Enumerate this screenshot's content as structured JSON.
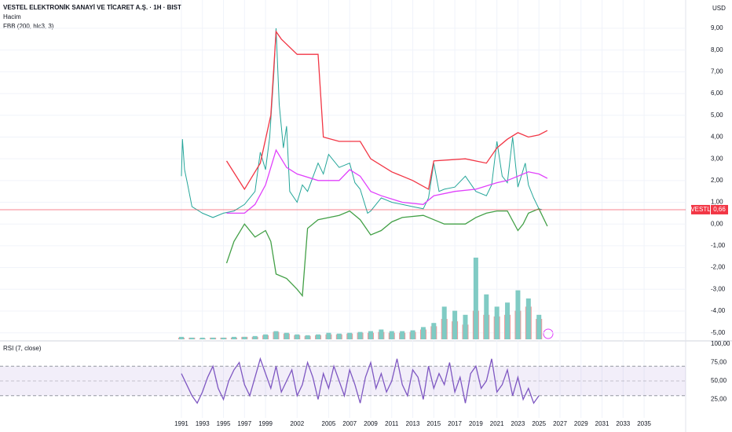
{
  "chart_data": [
    {
      "type": "line",
      "title": "VESTEL ELEKTRONİK SANAYİ VE TİCARET A.Ş. · 1H · BIST",
      "indicators": [
        "Hacim",
        "FBB (200, hlc3, 3)"
      ],
      "currency": "USD",
      "last_price": {
        "symbol": "VESTL",
        "value": 0.66,
        "label": "0,66",
        "color": "#f23645"
      },
      "xlim": [
        1973.75,
        2038.95
      ],
      "xticks": [
        1991,
        1993,
        1995,
        1997,
        1999,
        2002,
        2005,
        2007,
        2009,
        2011,
        2013,
        2015,
        2017,
        2019,
        2021,
        2023,
        2025,
        2027,
        2029,
        2031,
        2033,
        2035
      ],
      "ylim": [
        -5.3,
        10.3
      ],
      "yticks": [
        {
          "value": 9,
          "label": "9,00"
        },
        {
          "value": 8,
          "label": "8,00"
        },
        {
          "value": 7,
          "label": "7,00"
        },
        {
          "value": 6,
          "label": "6,00"
        },
        {
          "value": 5,
          "label": "5,00"
        },
        {
          "value": 4,
          "label": "4,00"
        },
        {
          "value": 3,
          "label": "3,00"
        },
        {
          "value": 2,
          "label": "2,00"
        },
        {
          "value": 1,
          "label": "1,00"
        },
        {
          "value": 0,
          "label": "0,00"
        },
        {
          "value": -1,
          "label": "-1,00"
        },
        {
          "value": -2,
          "label": "-2,00"
        },
        {
          "value": -3,
          "label": "-3,00"
        },
        {
          "value": -4,
          "label": "-4,00"
        },
        {
          "value": -5,
          "label": "-5,00"
        }
      ],
      "grid": true,
      "series": [
        {
          "color": "#26a69a",
          "x": [
            1991.0,
            1991.1,
            1991.3,
            1991.6,
            1992,
            1993,
            1994,
            1995,
            1996,
            1997,
            1998,
            1998.5,
            1999,
            1999.4,
            1999.8,
            2000.0,
            2000.3,
            2000.7,
            2001,
            2001.3,
            2002,
            2002.5,
            2003,
            2004,
            2004.5,
            2005,
            2006,
            2007,
            2007.5,
            2008,
            2008.7,
            2009,
            2010,
            2011,
            2012,
            2013,
            2014,
            2014.5,
            2015,
            2015.5,
            2016,
            2017,
            2018,
            2019,
            2020,
            2020.5,
            2021,
            2021.5,
            2022,
            2022.5,
            2023,
            2023.7,
            2024,
            2024.5,
            2025,
            2025.3
          ],
          "values": [
            2.2,
            3.9,
            2.5,
            1.8,
            0.8,
            0.5,
            0.3,
            0.5,
            0.6,
            0.9,
            1.5,
            3.3,
            2.5,
            4.0,
            7.0,
            9.0,
            5.5,
            3.5,
            4.5,
            1.5,
            1.0,
            1.8,
            1.5,
            2.8,
            2.3,
            3.2,
            2.6,
            2.8,
            1.9,
            1.6,
            0.5,
            0.6,
            1.2,
            1.0,
            0.9,
            0.8,
            0.7,
            1.2,
            2.8,
            1.5,
            1.6,
            1.7,
            2.2,
            1.5,
            1.3,
            1.8,
            3.8,
            2.2,
            1.9,
            4.0,
            1.7,
            2.8,
            1.8,
            1.2,
            0.7,
            0.66
          ]
        },
        {
          "color": "#f23645",
          "x": [
            1995.3,
            1997,
            1998.5,
            1999.5,
            2000,
            2000.5,
            2002,
            2004,
            2004.5,
            2006,
            2008,
            2009,
            2011,
            2013,
            2014.5,
            2015,
            2018,
            2020,
            2021,
            2022,
            2023,
            2024,
            2025,
            2025.8
          ],
          "values": [
            2.9,
            1.6,
            2.8,
            5.0,
            8.85,
            8.5,
            7.8,
            7.8,
            4.0,
            3.8,
            3.8,
            3.0,
            2.4,
            2.0,
            1.6,
            2.9,
            3.0,
            2.8,
            3.5,
            3.9,
            4.2,
            4.0,
            4.1,
            4.3
          ]
        },
        {
          "color": "#e040fb",
          "x": [
            1995.3,
            1997,
            1998,
            1999,
            2000,
            2001,
            2002,
            2004,
            2006,
            2007,
            2008,
            2009,
            2010,
            2012,
            2014,
            2015,
            2017,
            2019,
            2021,
            2022,
            2023,
            2024,
            2025,
            2025.8
          ],
          "values": [
            0.5,
            0.5,
            0.9,
            1.8,
            3.4,
            2.6,
            2.3,
            2.0,
            2.0,
            2.5,
            2.2,
            1.5,
            1.3,
            1.0,
            0.9,
            1.3,
            1.5,
            1.6,
            1.9,
            2.0,
            2.2,
            2.4,
            2.3,
            2.1
          ]
        },
        {
          "color": "#43a047",
          "x": [
            1995.3,
            1996,
            1997,
            1998,
            1999,
            1999.5,
            2000,
            2001,
            2002,
            2002.5,
            2003,
            2004,
            2006,
            2007,
            2008,
            2009,
            2010,
            2011,
            2012,
            2014,
            2015,
            2016,
            2018,
            2019,
            2020,
            2021,
            2022,
            2023,
            2023.5,
            2024,
            2025,
            2025.8
          ],
          "values": [
            -1.8,
            -0.8,
            0.0,
            -0.6,
            -0.3,
            -0.8,
            -2.3,
            -2.5,
            -3.0,
            -3.3,
            -0.2,
            0.2,
            0.4,
            0.6,
            0.2,
            -0.5,
            -0.3,
            0.1,
            0.3,
            0.4,
            0.2,
            0.0,
            0.0,
            0.3,
            0.5,
            0.6,
            0.6,
            -0.3,
            0.0,
            0.5,
            0.7,
            -0.1
          ]
        }
      ]
    },
    {
      "type": "bar",
      "ylim": [
        0,
        100
      ],
      "x": [
        1991,
        1992,
        1993,
        1994,
        1995,
        1996,
        1997,
        1998,
        1999,
        2000,
        2001,
        2002,
        2003,
        2004,
        2005,
        2006,
        2007,
        2008,
        2009,
        2010,
        2011,
        2012,
        2013,
        2014,
        2015,
        2016,
        2017,
        2018,
        2019,
        2020,
        2021,
        2022,
        2023,
        2024,
        2025
      ],
      "series": [
        {
          "color": "#ef9a9a",
          "values": [
            2,
            2,
            1,
            2,
            2,
            2,
            3,
            3,
            5,
            9,
            7,
            5,
            4,
            5,
            6,
            6,
            7,
            8,
            8,
            9,
            8,
            8,
            9,
            12,
            16,
            25,
            22,
            18,
            35,
            30,
            28,
            30,
            35,
            40,
            25
          ]
        },
        {
          "color": "#80cbc4",
          "values": [
            3,
            2,
            2,
            2,
            2,
            3,
            3,
            4,
            6,
            10,
            8,
            6,
            5,
            6,
            8,
            7,
            8,
            9,
            10,
            12,
            10,
            10,
            11,
            15,
            20,
            40,
            35,
            30,
            100,
            55,
            40,
            45,
            60,
            50,
            30
          ]
        }
      ]
    },
    {
      "type": "line",
      "title": "RSI (7, close)",
      "ylim": [
        0,
        100
      ],
      "yticks": [
        {
          "value": 100,
          "label": "100,00"
        },
        {
          "value": 75,
          "label": "75,00"
        },
        {
          "value": 50,
          "label": "50,00"
        },
        {
          "value": 25,
          "label": "25,00"
        }
      ],
      "bands": [
        70,
        50,
        30
      ],
      "x": [
        1991,
        1991.5,
        1992,
        1992.5,
        1993,
        1993.5,
        1994,
        1994.5,
        1995,
        1995.5,
        1996,
        1996.5,
        1997,
        1997.5,
        1998,
        1998.5,
        1999,
        1999.5,
        2000,
        2000.5,
        2001,
        2001.5,
        2002,
        2002.5,
        2003,
        2003.5,
        2004,
        2004.5,
        2005,
        2005.5,
        2006,
        2006.5,
        2007,
        2007.5,
        2008,
        2008.5,
        2009,
        2009.5,
        2010,
        2010.5,
        2011,
        2011.5,
        2012,
        2012.5,
        2013,
        2013.5,
        2014,
        2014.5,
        2015,
        2015.5,
        2016,
        2016.5,
        2017,
        2017.5,
        2018,
        2018.5,
        2019,
        2019.5,
        2020,
        2020.5,
        2021,
        2021.5,
        2022,
        2022.5,
        2023,
        2023.5,
        2024,
        2024.5,
        2025
      ],
      "series": [
        {
          "color": "#7e57c2",
          "values": [
            60,
            45,
            30,
            20,
            35,
            55,
            70,
            40,
            25,
            50,
            65,
            75,
            45,
            30,
            55,
            80,
            60,
            40,
            70,
            35,
            50,
            65,
            30,
            45,
            75,
            55,
            25,
            60,
            40,
            70,
            50,
            30,
            65,
            45,
            20,
            55,
            75,
            40,
            60,
            35,
            50,
            80,
            45,
            30,
            65,
            55,
            25,
            70,
            40,
            60,
            45,
            75,
            35,
            55,
            20,
            60,
            70,
            40,
            50,
            80,
            35,
            45,
            65,
            30,
            55,
            25,
            40,
            20,
            30
          ]
        }
      ]
    }
  ]
}
